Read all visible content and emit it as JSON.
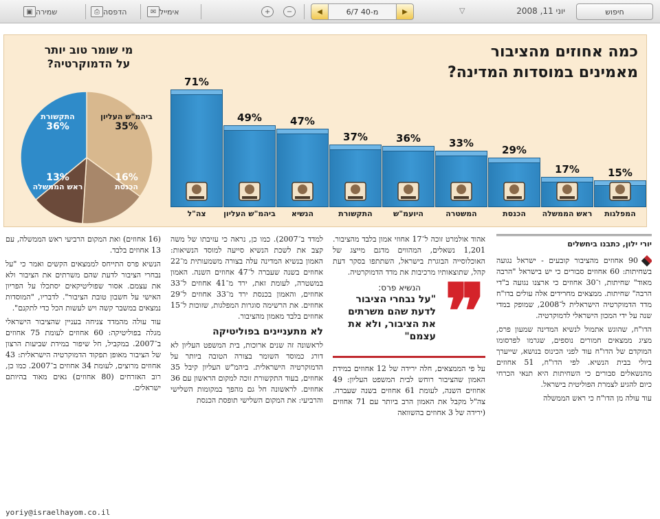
{
  "toolbar": {
    "save_label": "שמירה",
    "print_label": "הדפסה",
    "email_label": "אימייל",
    "page_value": "6/7 מ-40",
    "date": "יוני 11, 2008",
    "search_label": "חיפוש"
  },
  "infographic": {
    "title_line1": "כמה אחוזים מהציבור",
    "title_line2": "מאמינים במוסדות המדינה?",
    "pie_title_line1": "מי שומר טוב יותר",
    "pie_title_line2": "על הדמוקרטיה?"
  },
  "colors": {
    "bar": "#2f8bc9",
    "pie_blue": "#2f8bc9",
    "pie_tan": "#d8b88e",
    "pie_brown": "#6b4a3a",
    "quote": "#d4232a"
  },
  "chart_data": [
    {
      "type": "bar",
      "categories": [
        "צה\"ל",
        "ביהמ\"ש העליון",
        "הנשיא",
        "התקשורת",
        "היועמ\"ש",
        "המשטרה",
        "הכנסת",
        "ראש הממשלה",
        "המפלגות"
      ],
      "values": [
        71,
        49,
        47,
        37,
        36,
        33,
        29,
        17,
        15
      ],
      "value_labels": [
        "71%",
        "49%",
        "47%",
        "37%",
        "36%",
        "33%",
        "29%",
        "17%",
        "15%"
      ],
      "ylim": [
        0,
        100
      ]
    },
    {
      "type": "pie",
      "series": [
        {
          "name": "ביהמ\"ש העליון",
          "value": 35,
          "label": "35%"
        },
        {
          "name": "התקשורת",
          "value": 36,
          "label": "36%"
        },
        {
          "name": "ראש הממשלה",
          "value": 13,
          "label": "13%"
        },
        {
          "name": "הכנסת",
          "value": 16,
          "label": "16%"
        }
      ]
    }
  ],
  "article": {
    "byline": "יורי ילון, כתבנו ביחשלים",
    "col1": [
      "90 אחוזים מהציבור קובעים - ישראל נגועה בשחיתות: 60 אחוזים סבורים כי יש בישראל \"הרבה מאוד\" שחיתות, ו־30 אחוזים כי ארצנו נגועה ב\"די הרבה\" שחיתות. ממצאים מחרידים אלה עולים בדו\"ח מדד הדמוקרטיה הישראלית ל־2008, שמופק במדי שנה על ידי המכון הישראלי לדמוקרטיה.",
      "הדו\"ח, שהוגש אתמול לנשיא המדינה שמעון פרס, מציג ממצאים חמורים נוספים, שגרמו לפרסומו המוקדם של הדו\"ח עוד לפני הכינוס בנושא, שייערך ביולי בבית הנשיא. לפי הדו\"ח, 51 אחוזים מהנשאלים סבורים כי השחיתות היא תנאי הכרחי כיום להגיע לצמרת הפוליטית בישראל.",
      "עוד עולה מן הדו\"ח כי ראש הממשלה"
    ],
    "col2_top": [
      "אהוד אולמרט זוכה ל־17 אחוזי אמון בלבד מהציבור. 1,201 נשאלים, המהווים מדגם מייצג של האוכלוסייה הבוגרת בישראל, השתתפו בסקר דעת קהל, שתוצאותיו מרכיבות את מדד הדמוקרטיה."
    ],
    "quote_name": "הנשיא פרס:",
    "quote_text": "\"על נבחרי הציבור לדעת שהם משרתים את הציבור, ולא את עצמם\"",
    "col2_bottom": [
      "על פי הממצאים, חלה ירידה של 12 אחוזים במידת האמון שהציבור רוחש לבית המשפט העליון: 49 אחוזים השנה, לעומת 61 אחוזים בשנה שעברה. צה\"ל מקבל את האמון הרב ביותר עם 71 אחוזים (ירידה של 3 אחוזים בהשוואה"
    ],
    "col3_top": [
      "למדד ב־2007). כמו כן, נראה כי עזיבתו של משה קצב את לשכת הנשיא סייעה למוסד הנשיאות: האמון בנשיא המדינה עלה בצורה משמעותית מ־22 אחוזים בשנה שעברה ל־47 אחוזים השנה. האמון במשטרה, לעומת זאת, ירד מ־41 אחוזים ל־33 אחוזים, והאמון בכנסת ירד מ־33 אחוזים ל־29 אחוזים. את הרשימה סוגרות המפלגות, שזוכות ל־15 אחוזים בלבד מאמון מהציבור."
    ],
    "subhead": "לא מתעניינים בפוליטיקה",
    "col3_bottom": [
      "לראשונה זה שנים ארוכות, בית המשפט העליון לא דורג כמוסד השומר בצורה הטובה ביותר על הדמוקרטיה הישראלית. ביהמ\"ש העליון קיבל 35 אחוזים, בעוד התקשורת זוכה למקום הראשון עם 36 אחוזים. לראשונה חל גם מהפך במקומות השלישי והרביעי: את המקום השלישי תופסת הכנסת"
    ],
    "col4": [
      "(16 אחוזים) ואת המקום הרביעי ראש הממשלה, עם 13 אחוזים בלבד.",
      "הנשיא פרס התייחס לממצאים הקשים ואמר כי \"על נבחרי הציבור לדעת שהם משרתים את הציבור ולא את עצמם. אסור שפוליטיקאים יסתכלו על הפריון האישי על חשבון טובת הציבור\". לדבריו, \"המוסדות נמצאים במשבר קשה ויש לעשות הכל כדי לתקנם\".",
      "עוד עולה מהמדד צניחה בעניין שהציבור הישראלי מגלה בפוליטיקה: 60 אחוזים לעומת 75 אחוזים ב־2007. במקביל, חל שיפור במידת שביעות הרצון של הציבור מאופן תפקוד הדמוקרטיה הישראלית: 43 אחוזים מרוצים, לעומת 34 אחוזים ב־2007. כמו כן, רוב האזרחים (80 אחוזים) גאים מאוד בהיותם ישראלים."
    ],
    "email": "yoriy@israelhayom.co.il"
  }
}
